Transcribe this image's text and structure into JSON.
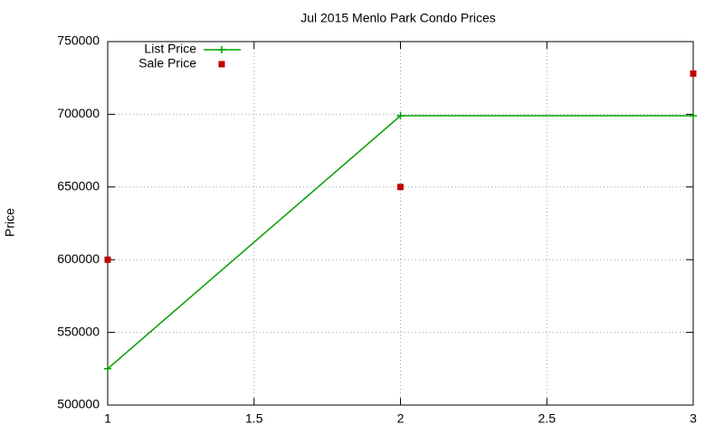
{
  "chart_data": {
    "type": "line",
    "title": "Jul 2015 Menlo Park Condo Prices",
    "y_label": "Price",
    "x": [
      1,
      2,
      3
    ],
    "series": [
      {
        "name": "List Price",
        "color": "#00a000",
        "mode": "lines+points",
        "values": [
          525000,
          699000,
          699000
        ]
      },
      {
        "name": "Sale Price",
        "color": "#c00000",
        "mode": "points",
        "values": [
          600000,
          650000,
          728000
        ]
      }
    ],
    "xlim": [
      1,
      3
    ],
    "xticks": [
      1,
      1.5,
      2,
      2.5,
      3
    ],
    "ylim": [
      500000,
      750000
    ],
    "yticks": [
      500000,
      550000,
      600000,
      650000,
      700000,
      750000
    ],
    "grid": true,
    "legend": "top-left"
  }
}
